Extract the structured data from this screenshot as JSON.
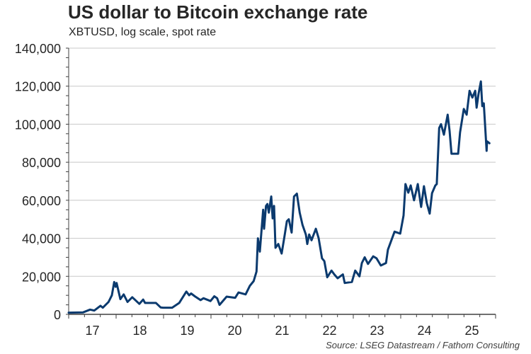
{
  "chart_data": {
    "type": "line",
    "title": "US dollar to Bitcoin exchange rate",
    "subtitle": "XBTUSD, log scale, spot rate",
    "source": "Source: LSEG Datastream / Fathom Consulting",
    "xlabel": "",
    "ylabel": "",
    "xlim": [
      2017,
      2026
    ],
    "ylim": [
      0,
      140000
    ],
    "grid": "horizontal",
    "line_color": "#0b3a6e",
    "grid_color": "#c8c8c8",
    "x_tick_labels": [
      "17",
      "18",
      "19",
      "20",
      "21",
      "22",
      "23",
      "24",
      "25"
    ],
    "y_tick_values": [
      0,
      20000,
      40000,
      60000,
      80000,
      100000,
      120000,
      140000
    ],
    "y_tick_labels": [
      "0",
      "20,000",
      "40,000",
      "60,000",
      "80,000",
      "100,000",
      "120,000",
      "140,000"
    ],
    "series": [
      {
        "x": [
          2017.0,
          2017.3,
          2017.45,
          2017.54,
          2017.67,
          2017.72,
          2017.84,
          2017.91,
          2017.96,
          2017.99,
          2018.01,
          2018.09,
          2018.16,
          2018.24,
          2018.34,
          2018.49,
          2018.57,
          2018.61,
          2018.84,
          2018.94,
          2018.99,
          2019.18,
          2019.33,
          2019.48,
          2019.54,
          2019.58,
          2019.66,
          2019.78,
          2019.84,
          2019.99,
          2020.07,
          2020.13,
          2020.18,
          2020.33,
          2020.51,
          2020.58,
          2020.73,
          2020.82,
          2020.9,
          2020.96,
          2020.99,
          2021.03,
          2021.1,
          2021.12,
          2021.16,
          2021.19,
          2021.22,
          2021.27,
          2021.3,
          2021.33,
          2021.36,
          2021.42,
          2021.49,
          2021.55,
          2021.6,
          2021.64,
          2021.7,
          2021.75,
          2021.81,
          2021.87,
          2021.93,
          2022.0,
          2022.03,
          2022.07,
          2022.12,
          2022.21,
          2022.27,
          2022.34,
          2022.39,
          2022.45,
          2022.54,
          2022.6,
          2022.67,
          2022.78,
          2022.82,
          2022.97,
          2023.04,
          2023.13,
          2023.18,
          2023.24,
          2023.31,
          2023.42,
          2023.49,
          2023.58,
          2023.69,
          2023.73,
          2023.87,
          2023.99,
          2024.06,
          2024.1,
          2024.16,
          2024.21,
          2024.28,
          2024.36,
          2024.43,
          2024.49,
          2024.55,
          2024.61,
          2024.66,
          2024.73,
          2024.76,
          2024.81,
          2024.85,
          2024.91,
          2024.99,
          2025.03,
          2025.07,
          2025.21,
          2025.25,
          2025.33,
          2025.39,
          2025.45,
          2025.51,
          2025.57,
          2025.6,
          2025.64,
          2025.69,
          2025.72,
          2025.75,
          2025.81,
          2025.82,
          2025.87
        ],
        "y": [
          900,
          1000,
          2500,
          2000,
          4500,
          3500,
          6500,
          10000,
          17000,
          14500,
          16500,
          8000,
          10500,
          6500,
          9000,
          5500,
          7800,
          6000,
          6000,
          3600,
          3500,
          3500,
          6000,
          12000,
          10000,
          11000,
          9500,
          7500,
          8500,
          7000,
          9500,
          8500,
          5000,
          9300,
          8700,
          11500,
          10500,
          15000,
          17500,
          22500,
          40000,
          33000,
          55000,
          45000,
          57000,
          58000,
          53500,
          62000,
          50500,
          57000,
          35000,
          37000,
          32000,
          41000,
          49000,
          50000,
          43000,
          62000,
          63500,
          53500,
          47000,
          42000,
          37000,
          42000,
          39000,
          45000,
          40000,
          29500,
          28000,
          19500,
          23000,
          21000,
          19000,
          21000,
          16500,
          17000,
          23000,
          20000,
          27000,
          30000,
          26500,
          30500,
          29500,
          25700,
          27000,
          34000,
          43500,
          42500,
          52000,
          68500,
          64000,
          67800,
          60000,
          68500,
          56500,
          67400,
          58500,
          53000,
          63700,
          67800,
          68500,
          98000,
          100000,
          94500,
          105000,
          96500,
          84500,
          84500,
          95700,
          108000,
          105000,
          117600,
          114000,
          117600,
          108700,
          116000,
          122500,
          109500,
          111000,
          86000,
          91000,
          90000
        ]
      }
    ]
  }
}
